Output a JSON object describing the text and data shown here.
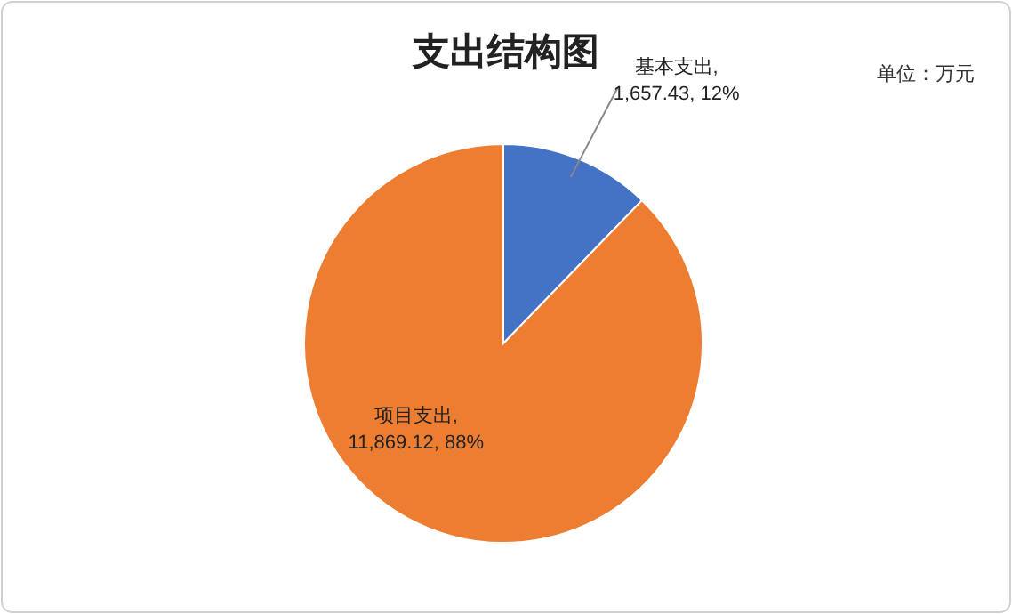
{
  "chart_data": {
    "type": "pie",
    "title": "支出结构图",
    "categories": [
      "基本支出",
      "项目支出"
    ],
    "values": [
      1657.43,
      11869.12
    ],
    "colors": [
      "#4472c4",
      "#ed7d31"
    ],
    "value_labels": [
      ", 1,657.43, 12%",
      ", 11,869.12, 88%"
    ],
    "annotations": [
      "单位：万元"
    ]
  }
}
